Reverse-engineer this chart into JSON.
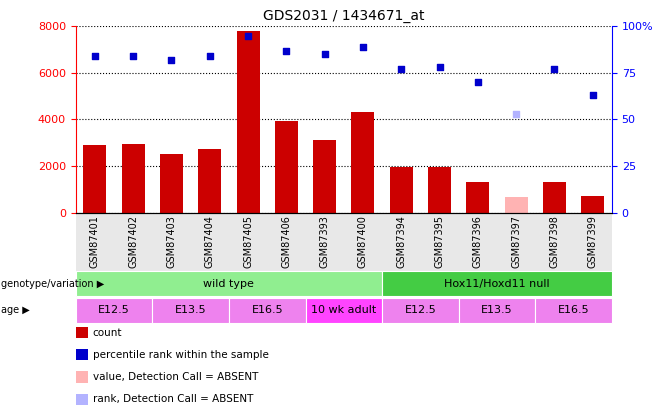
{
  "title": "GDS2031 / 1434671_at",
  "samples": [
    "GSM87401",
    "GSM87402",
    "GSM87403",
    "GSM87404",
    "GSM87405",
    "GSM87406",
    "GSM87393",
    "GSM87400",
    "GSM87394",
    "GSM87395",
    "GSM87396",
    "GSM87397",
    "GSM87398",
    "GSM87399"
  ],
  "bar_values": [
    2900,
    2950,
    2500,
    2750,
    7800,
    3950,
    3100,
    4300,
    1950,
    1950,
    1300,
    650,
    1300,
    700
  ],
  "bar_colors": [
    "#cc0000",
    "#cc0000",
    "#cc0000",
    "#cc0000",
    "#cc0000",
    "#cc0000",
    "#cc0000",
    "#cc0000",
    "#cc0000",
    "#cc0000",
    "#cc0000",
    "#ffb3b3",
    "#cc0000",
    "#cc0000"
  ],
  "scatter_values": [
    84,
    84,
    82,
    84,
    95,
    87,
    85,
    89,
    77,
    78,
    70,
    53,
    77,
    63
  ],
  "scatter_colors": [
    "#0000cc",
    "#0000cc",
    "#0000cc",
    "#0000cc",
    "#0000cc",
    "#0000cc",
    "#0000cc",
    "#0000cc",
    "#0000cc",
    "#0000cc",
    "#0000cc",
    "#b3b3ff",
    "#0000cc",
    "#0000cc"
  ],
  "ylim_left": [
    0,
    8000
  ],
  "ylim_right": [
    0,
    100
  ],
  "yticks_left": [
    0,
    2000,
    4000,
    6000,
    8000
  ],
  "yticks_right": [
    0,
    25,
    50,
    75,
    100
  ],
  "ytick_labels_right": [
    "0",
    "25",
    "50",
    "75",
    "100%"
  ],
  "genotype_groups": [
    {
      "label": "wild type",
      "start": 0,
      "end": 8,
      "color": "#90ee90"
    },
    {
      "label": "Hox11/Hoxd11 null",
      "start": 8,
      "end": 14,
      "color": "#44cc44"
    }
  ],
  "age_groups": [
    {
      "label": "E12.5",
      "start": 0,
      "end": 2,
      "color": "#ee82ee"
    },
    {
      "label": "E13.5",
      "start": 2,
      "end": 4,
      "color": "#ee82ee"
    },
    {
      "label": "E16.5",
      "start": 4,
      "end": 6,
      "color": "#ee82ee"
    },
    {
      "label": "10 wk adult",
      "start": 6,
      "end": 8,
      "color": "#ff44ff"
    },
    {
      "label": "E12.5",
      "start": 8,
      "end": 10,
      "color": "#ee82ee"
    },
    {
      "label": "E13.5",
      "start": 10,
      "end": 12,
      "color": "#ee82ee"
    },
    {
      "label": "E16.5",
      "start": 12,
      "end": 14,
      "color": "#ee82ee"
    }
  ],
  "legend_items": [
    {
      "label": "count",
      "color": "#cc0000"
    },
    {
      "label": "percentile rank within the sample",
      "color": "#0000cc"
    },
    {
      "label": "value, Detection Call = ABSENT",
      "color": "#ffb3b3"
    },
    {
      "label": "rank, Detection Call = ABSENT",
      "color": "#b3b3ff"
    }
  ],
  "genotype_label": "genotype/variation",
  "age_label": "age",
  "bar_width": 0.6,
  "bg_color": "#e8e8e8"
}
